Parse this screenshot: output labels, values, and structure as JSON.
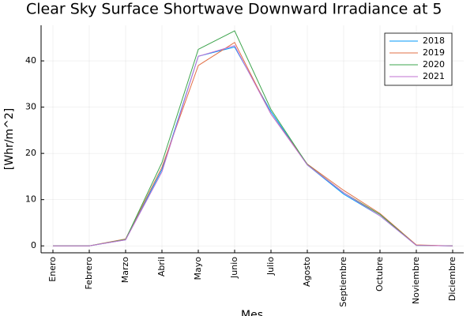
{
  "chart_data": {
    "type": "line",
    "title": "Clear Sky Surface Shortwave Downward Irradiance at 5",
    "x_label": "Mes",
    "y_label": "[Whr/m^2]",
    "categories": [
      "Enero",
      "Febrero",
      "Marzo",
      "Abril",
      "Mayo",
      "Junio",
      "Julio",
      "Agosto",
      "Septiembre",
      "Octubre",
      "Noviembre",
      "Diciembre"
    ],
    "series": [
      {
        "name": "2018",
        "color": "#009af9",
        "values": [
          0,
          0,
          1.3,
          16.5,
          41,
          43,
          29,
          17.5,
          11.2,
          6.5,
          0.1,
          0
        ]
      },
      {
        "name": "2019",
        "color": "#e26f46",
        "values": [
          0,
          0,
          1.5,
          17,
          39,
          44,
          28.5,
          17.7,
          12,
          7,
          0.2,
          0
        ]
      },
      {
        "name": "2020",
        "color": "#3da44d",
        "values": [
          0,
          0,
          1.4,
          18,
          42.5,
          46.5,
          29.5,
          17.6,
          11.5,
          6.8,
          0.1,
          0
        ]
      },
      {
        "name": "2021",
        "color": "#c271d2",
        "values": [
          0,
          0,
          1.3,
          16,
          41,
          43.3,
          28.5,
          17.5,
          11.5,
          6.5,
          0.1,
          0
        ]
      }
    ],
    "ylim": [
      -1.5,
      47.7
    ],
    "yticks": [
      0,
      10,
      20,
      30,
      40
    ],
    "grid": true,
    "legend": "top-right"
  }
}
